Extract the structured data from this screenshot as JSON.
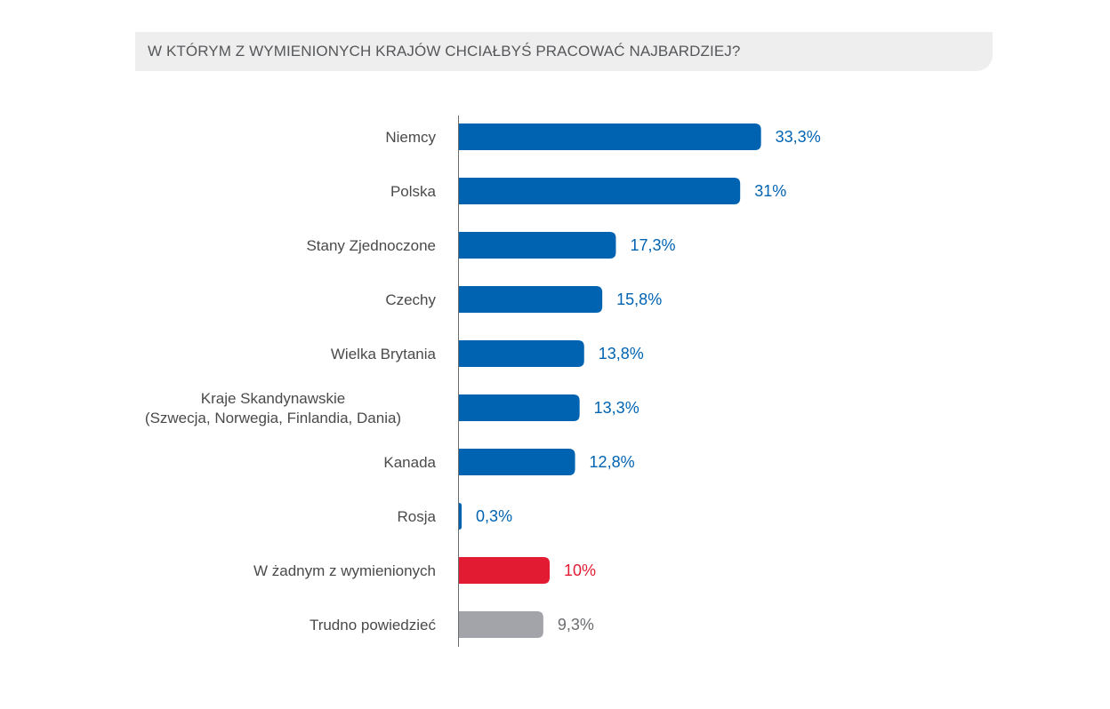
{
  "chart_data": {
    "type": "bar",
    "orientation": "horizontal",
    "title": "W KTÓRYM Z WYMIENIONYCH KRAJÓW CHCIAŁBYŚ PRACOWAĆ NAJBARDZIEJ?",
    "xlabel": "",
    "ylabel": "",
    "grid": false,
    "legend": "none",
    "xlim": [
      0,
      40
    ],
    "categories": [
      [
        "Niemcy"
      ],
      [
        "Polska"
      ],
      [
        "Stany Zjednoczone"
      ],
      [
        "Czechy"
      ],
      [
        "Wielka Brytania"
      ],
      [
        "Kraje Skandynawskie",
        "(Szwecja, Norwegia, Finlandia, Dania)"
      ],
      [
        "Kanada"
      ],
      [
        "Rosja"
      ],
      [
        "W żadnym z wymienionych"
      ],
      [
        "Trudno powiedzieć"
      ]
    ],
    "values": [
      33.3,
      31,
      17.3,
      15.8,
      13.8,
      13.3,
      12.8,
      0.3,
      10,
      9.3
    ],
    "value_labels": [
      "33,3%",
      "31%",
      "17,3%",
      "15,8%",
      "13,8%",
      "13,3%",
      "12,8%",
      "0,3%",
      "10%",
      "9,3%"
    ],
    "bar_colors": [
      "#0063b2",
      "#0063b2",
      "#0063b2",
      "#0063b2",
      "#0063b2",
      "#0063b2",
      "#0063b2",
      "#0063b2",
      "#e21b33",
      "#a2a4a9"
    ],
    "label_colors": [
      "#0063b2",
      "#0063b2",
      "#0063b2",
      "#0063b2",
      "#0063b2",
      "#0063b2",
      "#0063b2",
      "#0063b2",
      "#e21b33",
      "#6b6d70"
    ],
    "axis_color": "#6b6d70"
  }
}
